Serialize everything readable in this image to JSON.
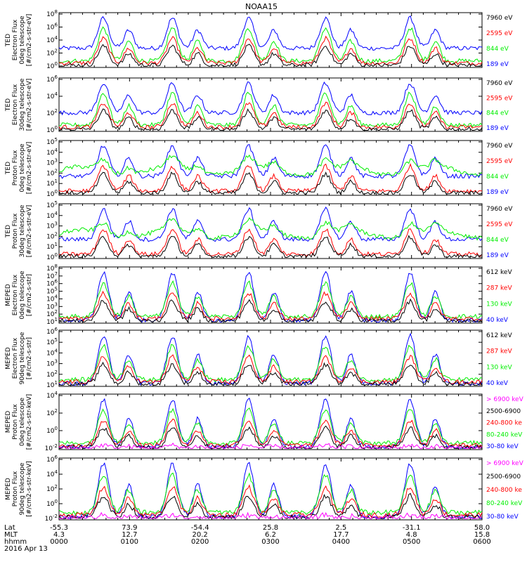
{
  "title": "NOAA15",
  "colors": {
    "black": "#000000",
    "red": "#ff0000",
    "green": "#00ee00",
    "blue": "#0000ff",
    "magenta": "#ff00ff",
    "frame": "#000000"
  },
  "chart_data": [
    {
      "type": "line",
      "ylabel": [
        "TED",
        "Electron Flux",
        "0deg telescope",
        "[#/cm2-s-str-eV]"
      ],
      "ylog": true,
      "yticks": [
        "10^0",
        "10^2",
        "10^4",
        "10^6",
        "10^8"
      ],
      "series": [
        {
          "name": "7960 eV",
          "color": "black"
        },
        {
          "name": "2595 eV",
          "color": "red"
        },
        {
          "name": "844 eV",
          "color": "green"
        },
        {
          "name": "189 eV",
          "color": "blue"
        }
      ]
    },
    {
      "type": "line",
      "ylabel": [
        "TED",
        "Electron Flux",
        "30deg telescope",
        "[#/cm2-s-str-eV]"
      ],
      "ylog": true,
      "yticks": [
        "10^0",
        "10^2",
        "10^4",
        "10^6"
      ],
      "series": [
        {
          "name": "7960 eV",
          "color": "black"
        },
        {
          "name": "2595 eV",
          "color": "red"
        },
        {
          "name": "844 eV",
          "color": "green"
        },
        {
          "name": "189 eV",
          "color": "blue"
        }
      ]
    },
    {
      "type": "line",
      "ylabel": [
        "TED",
        "Proton Flux",
        "0deg telescope",
        "[#/cm2-s-str-eV]"
      ],
      "ylog": true,
      "yticks": [
        "10^0",
        "10^1",
        "10^2",
        "10^3",
        "10^4",
        "10^5"
      ],
      "series": [
        {
          "name": "7960 eV",
          "color": "black"
        },
        {
          "name": "2595 eV",
          "color": "red"
        },
        {
          "name": "844 eV",
          "color": "green"
        },
        {
          "name": "189 eV",
          "color": "blue"
        }
      ]
    },
    {
      "type": "line",
      "ylabel": [
        "TED",
        "Proton Flux",
        "30deg telescope",
        "[#/cm2-s-str-eV]"
      ],
      "ylog": true,
      "yticks": [
        "10^0",
        "10^1",
        "10^2",
        "10^3",
        "10^4",
        "10^5"
      ],
      "series": [
        {
          "name": "7960 eV",
          "color": "black"
        },
        {
          "name": "2595 eV",
          "color": "red"
        },
        {
          "name": "844 eV",
          "color": "green"
        },
        {
          "name": "189 eV",
          "color": "blue"
        }
      ]
    },
    {
      "type": "line",
      "ylabel": [
        "MEPED",
        "Electron Flux",
        "0deg telescope",
        "[#/cm2-s-str]"
      ],
      "ylog": true,
      "yticks": [
        "10^1",
        "10^2",
        "10^3",
        "10^4",
        "10^5",
        "10^6",
        "10^7",
        "10^8"
      ],
      "series": [
        {
          "name": "612 keV",
          "color": "black"
        },
        {
          "name": "287 keV",
          "color": "red"
        },
        {
          "name": "130 keV",
          "color": "green"
        },
        {
          "name": "40 keV",
          "color": "blue"
        }
      ]
    },
    {
      "type": "line",
      "ylabel": [
        "MEPED",
        "Electron Flux",
        "90deg telescope",
        "[#/cm2-s-str]"
      ],
      "ylog": true,
      "yticks": [
        "10^1",
        "10^2",
        "10^3",
        "10^4",
        "10^5",
        "10^6"
      ],
      "series": [
        {
          "name": "612 keV",
          "color": "black"
        },
        {
          "name": "287 keV",
          "color": "red"
        },
        {
          "name": "130 keV",
          "color": "green"
        },
        {
          "name": "40 keV",
          "color": "blue"
        }
      ]
    },
    {
      "type": "line",
      "ylabel": [
        "MEPED",
        "Proton Flux",
        "0deg telescope",
        "[#/cm2-s-str-keV]"
      ],
      "ylog": true,
      "yticks": [
        "10^-2",
        "10^0",
        "10^2",
        "10^4"
      ],
      "series": [
        {
          "name": "> 6900 keV",
          "color": "magenta"
        },
        {
          "name": "2500-6900",
          "color": "black"
        },
        {
          "name": "240-800 ke",
          "color": "red"
        },
        {
          "name": "80-240 keV",
          "color": "green"
        },
        {
          "name": "30-80 keV",
          "color": "blue"
        }
      ]
    },
    {
      "type": "line",
      "ylabel": [
        "MEPED",
        "Proton Flux",
        "90deg telescope",
        "[#/cm2-s-str-keV]"
      ],
      "ylog": true,
      "yticks": [
        "10^-2",
        "10^0",
        "10^2",
        "10^4",
        "10^6"
      ],
      "series": [
        {
          "name": "> 6900 keV",
          "color": "magenta"
        },
        {
          "name": "2500-6900",
          "color": "black"
        },
        {
          "name": "240-800 ke",
          "color": "red"
        },
        {
          "name": "80-240 keV",
          "color": "green"
        },
        {
          "name": "30-80 keV",
          "color": "blue"
        }
      ]
    }
  ],
  "xaxis": {
    "row_labels": [
      "Lat",
      "MLT",
      "hhmm",
      "2016 Apr 13"
    ],
    "ticks": [
      {
        "lat": "-55.3",
        "mlt": "4.3",
        "hhmm": "0000"
      },
      {
        "lat": "73.9",
        "mlt": "12.7",
        "hhmm": "0100"
      },
      {
        "lat": "-54.4",
        "mlt": "20.2",
        "hhmm": "0200"
      },
      {
        "lat": "25.8",
        "mlt": "6.2",
        "hhmm": "0300"
      },
      {
        "lat": "2.5",
        "mlt": "17.7",
        "hhmm": "0400"
      },
      {
        "lat": "-31.1",
        "mlt": "4.8",
        "hhmm": "0500"
      },
      {
        "lat": "58.0",
        "mlt": "15.8",
        "hhmm": "0600"
      }
    ]
  },
  "peaks": [
    0.105,
    0.268,
    0.448,
    0.63,
    0.83
  ]
}
